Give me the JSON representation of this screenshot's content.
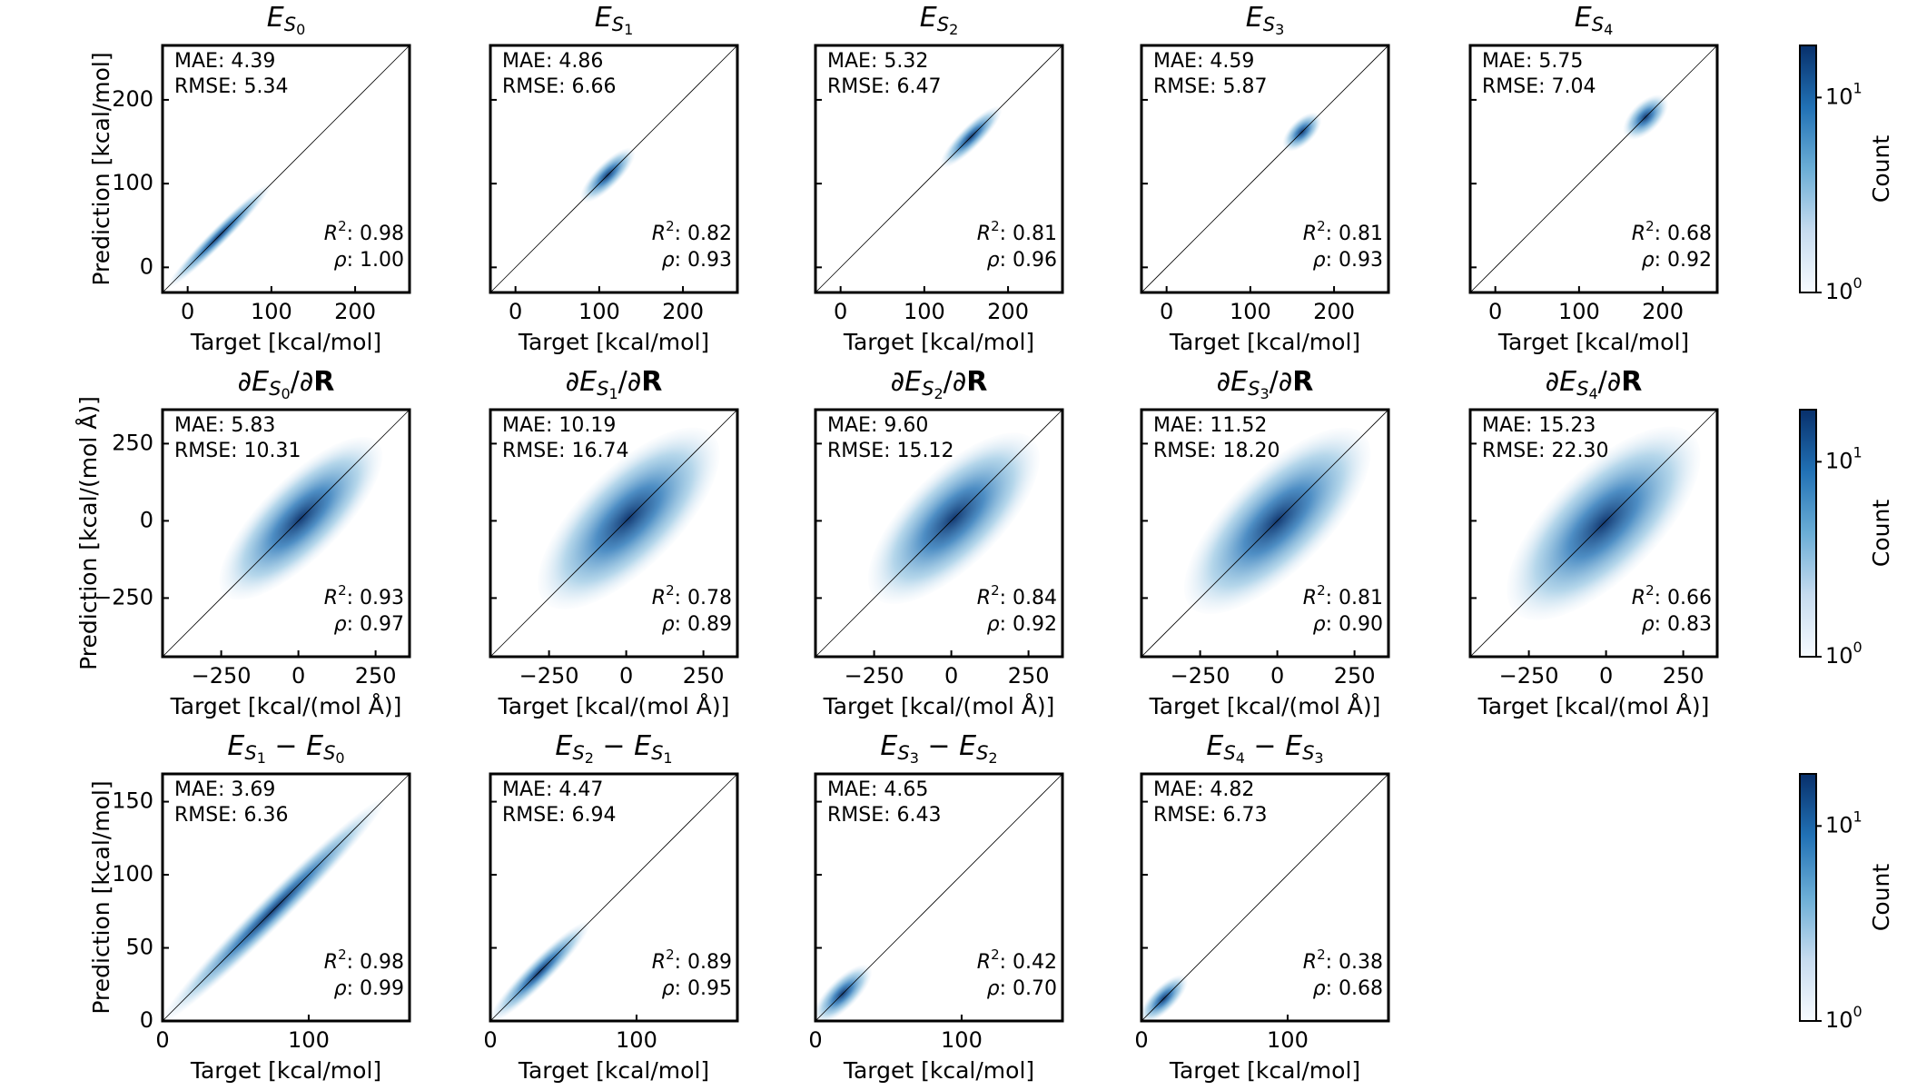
{
  "stat_labels": {
    "mae": "MAE",
    "rmse": "RMSE",
    "r": "R",
    "r_exp": "2",
    "rho": "ρ",
    "sep": ": "
  },
  "chart_data": [
    {
      "type": "hexbin-row",
      "ylabel": "Prediction [kcal/mol]",
      "ylim": [
        -30,
        265
      ],
      "yticks": [
        0,
        100,
        200
      ],
      "colorbar": {
        "label": "Count",
        "log": true,
        "clim": [
          1,
          18.5
        ],
        "colors": [
          "#f7fbff",
          "#c6dbef",
          "#6baed6",
          "#2171b5",
          "#08306b"
        ],
        "ticks": [
          {
            "value": 1,
            "label": "10",
            "exp": "0"
          },
          {
            "value": 10,
            "label": "10",
            "exp": "1"
          }
        ]
      },
      "panels": [
        {
          "title": [
            {
              "t": "E",
              "i": 1
            },
            {
              "t": "S",
              "i": 1,
              "sub": 1
            },
            {
              "t": "0",
              "sub": 2
            }
          ],
          "xlabel": "Target [kcal/mol]",
          "xlim": [
            -30,
            265
          ],
          "xticks": [
            0,
            100,
            200
          ],
          "stats": {
            "mae": "4.39",
            "rmse": "5.34",
            "r2": "0.98",
            "rho": "1.00"
          }
        },
        {
          "title": [
            {
              "t": "E",
              "i": 1
            },
            {
              "t": "S",
              "i": 1,
              "sub": 1
            },
            {
              "t": "1",
              "sub": 2
            }
          ],
          "xlabel": "Target [kcal/mol]",
          "xlim": [
            -30,
            265
          ],
          "xticks": [
            0,
            100,
            200
          ],
          "stats": {
            "mae": "4.86",
            "rmse": "6.66",
            "r2": "0.82",
            "rho": "0.93"
          }
        },
        {
          "title": [
            {
              "t": "E",
              "i": 1
            },
            {
              "t": "S",
              "i": 1,
              "sub": 1
            },
            {
              "t": "2",
              "sub": 2
            }
          ],
          "xlabel": "Target [kcal/mol]",
          "xlim": [
            -30,
            265
          ],
          "xticks": [
            0,
            100,
            200
          ],
          "stats": {
            "mae": "5.32",
            "rmse": "6.47",
            "r2": "0.81",
            "rho": "0.96"
          }
        },
        {
          "title": [
            {
              "t": "E",
              "i": 1
            },
            {
              "t": "S",
              "i": 1,
              "sub": 1
            },
            {
              "t": "3",
              "sub": 2
            }
          ],
          "xlabel": "Target [kcal/mol]",
          "xlim": [
            -30,
            265
          ],
          "xticks": [
            0,
            100,
            200
          ],
          "stats": {
            "mae": "4.59",
            "rmse": "5.87",
            "r2": "0.81",
            "rho": "0.93"
          }
        },
        {
          "title": [
            {
              "t": "E",
              "i": 1
            },
            {
              "t": "S",
              "i": 1,
              "sub": 1
            },
            {
              "t": "4",
              "sub": 2
            }
          ],
          "xlabel": "Target [kcal/mol]",
          "xlim": [
            -30,
            265
          ],
          "xticks": [
            0,
            100,
            200
          ],
          "stats": {
            "mae": "5.75",
            "rmse": "7.04",
            "r2": "0.68",
            "rho": "0.92"
          }
        }
      ]
    },
    {
      "type": "hexbin-row",
      "ylabel": "Prediction [kcal/(mol Å)]",
      "ylim": [
        -440,
        360
      ],
      "yticks": [
        {
          "value": -250,
          "label": "−250"
        },
        0,
        250
      ],
      "colorbar": {
        "label": "Count",
        "log": true,
        "clim": [
          1,
          18.5
        ],
        "colors": [
          "#f7fbff",
          "#c6dbef",
          "#6baed6",
          "#2171b5",
          "#08306b"
        ],
        "ticks": [
          {
            "value": 1,
            "label": "10",
            "exp": "0"
          },
          {
            "value": 10,
            "label": "10",
            "exp": "1"
          }
        ]
      },
      "panels": [
        {
          "title": [
            {
              "t": "∂"
            },
            {
              "t": "E",
              "i": 1
            },
            {
              "t": "S",
              "i": 1,
              "sub": 1
            },
            {
              "t": "0",
              "sub": 2
            },
            {
              "t": "/∂"
            },
            {
              "t": "R",
              "b": 1
            }
          ],
          "xlabel": "Target [kcal/(mol Å)]",
          "xlim": [
            -440,
            360
          ],
          "xticks": [
            {
              "value": -250,
              "label": "−250"
            },
            0,
            250
          ],
          "stats": {
            "mae": "5.83",
            "rmse": "10.31",
            "r2": "0.93",
            "rho": "0.97"
          }
        },
        {
          "title": [
            {
              "t": "∂"
            },
            {
              "t": "E",
              "i": 1
            },
            {
              "t": "S",
              "i": 1,
              "sub": 1
            },
            {
              "t": "1",
              "sub": 2
            },
            {
              "t": "/∂"
            },
            {
              "t": "R",
              "b": 1
            }
          ],
          "xlabel": "Target [kcal/(mol Å)]",
          "xlim": [
            -440,
            360
          ],
          "xticks": [
            {
              "value": -250,
              "label": "−250"
            },
            0,
            250
          ],
          "stats": {
            "mae": "10.19",
            "rmse": "16.74",
            "r2": "0.78",
            "rho": "0.89"
          }
        },
        {
          "title": [
            {
              "t": "∂"
            },
            {
              "t": "E",
              "i": 1
            },
            {
              "t": "S",
              "i": 1,
              "sub": 1
            },
            {
              "t": "2",
              "sub": 2
            },
            {
              "t": "/∂"
            },
            {
              "t": "R",
              "b": 1
            }
          ],
          "xlabel": "Target [kcal/(mol Å)]",
          "xlim": [
            -440,
            360
          ],
          "xticks": [
            {
              "value": -250,
              "label": "−250"
            },
            0,
            250
          ],
          "stats": {
            "mae": "9.60",
            "rmse": "15.12",
            "r2": "0.84",
            "rho": "0.92"
          }
        },
        {
          "title": [
            {
              "t": "∂"
            },
            {
              "t": "E",
              "i": 1
            },
            {
              "t": "S",
              "i": 1,
              "sub": 1
            },
            {
              "t": "3",
              "sub": 2
            },
            {
              "t": "/∂"
            },
            {
              "t": "R",
              "b": 1
            }
          ],
          "xlabel": "Target [kcal/(mol Å)]",
          "xlim": [
            -440,
            360
          ],
          "xticks": [
            {
              "value": -250,
              "label": "−250"
            },
            0,
            250
          ],
          "stats": {
            "mae": "11.52",
            "rmse": "18.20",
            "r2": "0.81",
            "rho": "0.90"
          }
        },
        {
          "title": [
            {
              "t": "∂"
            },
            {
              "t": "E",
              "i": 1
            },
            {
              "t": "S",
              "i": 1,
              "sub": 1
            },
            {
              "t": "4",
              "sub": 2
            },
            {
              "t": "/∂"
            },
            {
              "t": "R",
              "b": 1
            }
          ],
          "xlabel": "Target [kcal/(mol Å)]",
          "xlim": [
            -440,
            360
          ],
          "xticks": [
            {
              "value": -250,
              "label": "−250"
            },
            0,
            250
          ],
          "stats": {
            "mae": "15.23",
            "rmse": "22.30",
            "r2": "0.66",
            "rho": "0.83"
          }
        }
      ]
    },
    {
      "type": "hexbin-row",
      "ylabel": "Prediction [kcal/mol]",
      "ylim": [
        0,
        169
      ],
      "yticks": [
        0,
        50,
        100,
        150
      ],
      "colorbar": {
        "label": "Count",
        "log": true,
        "clim": [
          1,
          18.5
        ],
        "colors": [
          "#f7fbff",
          "#c6dbef",
          "#6baed6",
          "#2171b5",
          "#08306b"
        ],
        "ticks": [
          {
            "value": 1,
            "label": "10",
            "exp": "0"
          },
          {
            "value": 10,
            "label": "10",
            "exp": "1"
          }
        ]
      },
      "panels": [
        {
          "title": [
            {
              "t": "E",
              "i": 1
            },
            {
              "t": "S",
              "i": 1,
              "sub": 1
            },
            {
              "t": "1",
              "sub": 2
            },
            {
              "t": " − "
            },
            {
              "t": "E",
              "i": 1
            },
            {
              "t": "S",
              "i": 1,
              "sub": 1
            },
            {
              "t": "0",
              "sub": 2
            }
          ],
          "xlabel": "Target [kcal/mol]",
          "xlim": [
            0,
            169
          ],
          "xticks": [
            0,
            100
          ],
          "stats": {
            "mae": "3.69",
            "rmse": "6.36",
            "r2": "0.98",
            "rho": "0.99"
          }
        },
        {
          "title": [
            {
              "t": "E",
              "i": 1
            },
            {
              "t": "S",
              "i": 1,
              "sub": 1
            },
            {
              "t": "2",
              "sub": 2
            },
            {
              "t": " − "
            },
            {
              "t": "E",
              "i": 1
            },
            {
              "t": "S",
              "i": 1,
              "sub": 1
            },
            {
              "t": "1",
              "sub": 2
            }
          ],
          "xlabel": "Target [kcal/mol]",
          "xlim": [
            0,
            169
          ],
          "xticks": [
            0,
            100
          ],
          "stats": {
            "mae": "4.47",
            "rmse": "6.94",
            "r2": "0.89",
            "rho": "0.95"
          }
        },
        {
          "title": [
            {
              "t": "E",
              "i": 1
            },
            {
              "t": "S",
              "i": 1,
              "sub": 1
            },
            {
              "t": "3",
              "sub": 2
            },
            {
              "t": " − "
            },
            {
              "t": "E",
              "i": 1
            },
            {
              "t": "S",
              "i": 1,
              "sub": 1
            },
            {
              "t": "2",
              "sub": 2
            }
          ],
          "xlabel": "Target [kcal/mol]",
          "xlim": [
            0,
            169
          ],
          "xticks": [
            0,
            100
          ],
          "stats": {
            "mae": "4.65",
            "rmse": "6.43",
            "r2": "0.42",
            "rho": "0.70"
          }
        },
        {
          "title": [
            {
              "t": "E",
              "i": 1
            },
            {
              "t": "S",
              "i": 1,
              "sub": 1
            },
            {
              "t": "4",
              "sub": 2
            },
            {
              "t": " − "
            },
            {
              "t": "E",
              "i": 1
            },
            {
              "t": "S",
              "i": 1,
              "sub": 1
            },
            {
              "t": "3",
              "sub": 2
            }
          ],
          "xlabel": "Target [kcal/mol]",
          "xlim": [
            0,
            169
          ],
          "xticks": [
            0,
            100
          ],
          "stats": {
            "mae": "4.82",
            "rmse": "6.73",
            "r2": "0.38",
            "rho": "0.68"
          }
        }
      ]
    }
  ]
}
